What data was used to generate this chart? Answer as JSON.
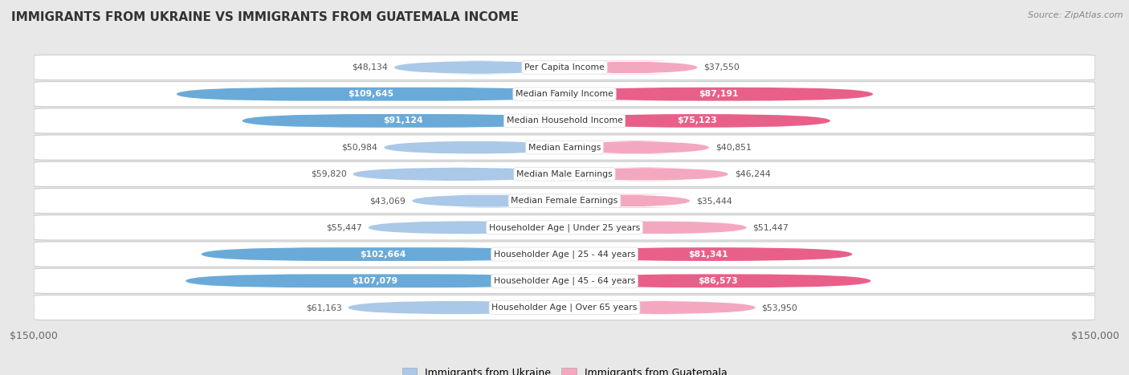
{
  "title": "IMMIGRANTS FROM UKRAINE VS IMMIGRANTS FROM GUATEMALA INCOME",
  "source": "Source: ZipAtlas.com",
  "categories": [
    "Per Capita Income",
    "Median Family Income",
    "Median Household Income",
    "Median Earnings",
    "Median Male Earnings",
    "Median Female Earnings",
    "Householder Age | Under 25 years",
    "Householder Age | 25 - 44 years",
    "Householder Age | 45 - 64 years",
    "Householder Age | Over 65 years"
  ],
  "ukraine_values": [
    48134,
    109645,
    91124,
    50984,
    59820,
    43069,
    55447,
    102664,
    107079,
    61163
  ],
  "guatemala_values": [
    37550,
    87191,
    75123,
    40851,
    46244,
    35444,
    51447,
    81341,
    86573,
    53950
  ],
  "ukraine_labels": [
    "$48,134",
    "$109,645",
    "$91,124",
    "$50,984",
    "$59,820",
    "$43,069",
    "$55,447",
    "$102,664",
    "$107,079",
    "$61,163"
  ],
  "guatemala_labels": [
    "$37,550",
    "$87,191",
    "$75,123",
    "$40,851",
    "$46,244",
    "$35,444",
    "$51,447",
    "$81,341",
    "$86,573",
    "$53,950"
  ],
  "ukraine_color_light": "#aac8e8",
  "ukraine_color_dark": "#6aaad8",
  "guatemala_color_light": "#f4a8c0",
  "guatemala_color_dark": "#e8608a",
  "max_value": 150000,
  "bar_height": 0.52,
  "background_color": "#e8e8e8",
  "row_bg_color": "#ffffff",
  "legend_ukraine": "Immigrants from Ukraine",
  "legend_guatemala": "Immigrants from Guatemala",
  "ukraine_inside_threshold": 70000,
  "guatemala_inside_threshold": 70000
}
